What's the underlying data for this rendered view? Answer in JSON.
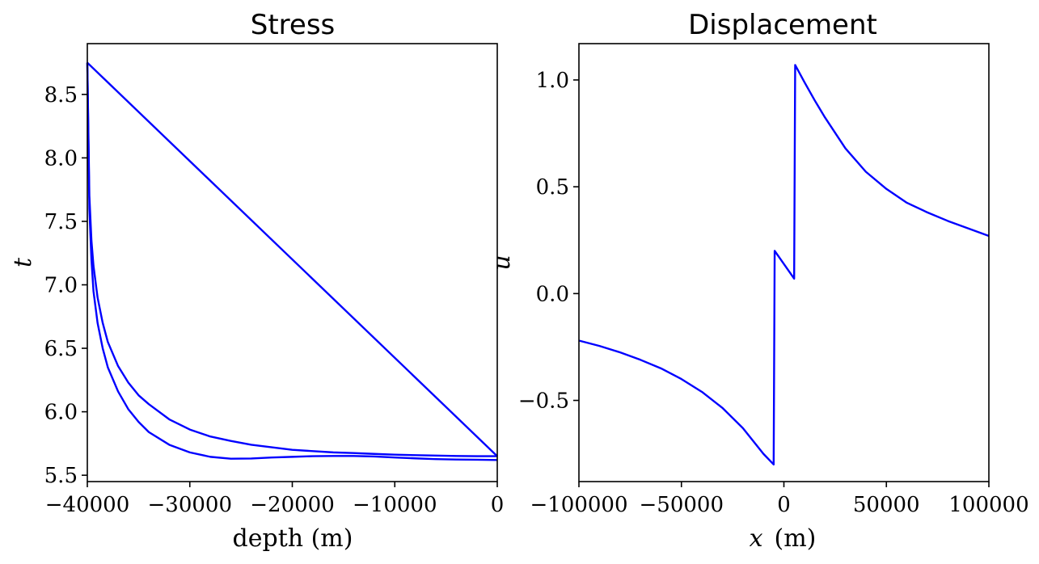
{
  "chart_data": [
    {
      "type": "line",
      "title": "Stress",
      "xlabel": "depth (m)",
      "ylabel": "t",
      "xlim": [
        -40000,
        0
      ],
      "ylim": [
        5.45,
        8.9
      ],
      "xticks": [
        -40000,
        -30000,
        -20000,
        -10000,
        0
      ],
      "xtick_labels": [
        "−40000",
        "−30000",
        "−20000",
        "−10000",
        "0"
      ],
      "yticks": [
        5.5,
        6.0,
        6.5,
        7.0,
        7.5,
        8.0,
        8.5
      ],
      "ytick_labels": [
        "5.5",
        "6.0",
        "6.5",
        "7.0",
        "7.5",
        "8.0",
        "8.5"
      ],
      "grid": false,
      "color": "#0000ff",
      "series": [
        {
          "x": [
            -40000,
            -39800,
            -39600,
            -39400,
            -39000,
            -38500,
            -38000,
            -37000,
            -36000,
            -35000,
            -34000,
            -32000,
            -30000,
            -28000,
            -26000,
            -24000,
            -22000,
            -20000,
            -18000,
            -16000,
            -14000,
            -12000,
            -10000,
            -8000,
            -6000,
            -4000,
            -2000,
            0
          ],
          "y": [
            8.75,
            7.6,
            7.2,
            6.95,
            6.7,
            6.5,
            6.35,
            6.16,
            6.02,
            5.92,
            5.84,
            5.74,
            5.68,
            5.645,
            5.63,
            5.632,
            5.64,
            5.645,
            5.65,
            5.652,
            5.652,
            5.648,
            5.64,
            5.633,
            5.627,
            5.624,
            5.622,
            5.62
          ]
        },
        {
          "x": [
            -40000,
            -39800,
            -39600,
            -39400,
            -39000,
            -38500,
            -38000,
            -37000,
            -36000,
            -35000,
            -34000,
            -32000,
            -30000,
            -28000,
            -26000,
            -24000,
            -22000,
            -20000,
            -18000,
            -16000,
            -14000,
            -12000,
            -10000,
            -8000,
            -6000,
            -4000,
            -2000,
            0
          ],
          "y": [
            8.75,
            7.7,
            7.35,
            7.15,
            6.9,
            6.7,
            6.55,
            6.36,
            6.23,
            6.13,
            6.06,
            5.94,
            5.86,
            5.805,
            5.77,
            5.74,
            5.72,
            5.7,
            5.69,
            5.68,
            5.675,
            5.668,
            5.662,
            5.658,
            5.655,
            5.652,
            5.65,
            5.65
          ]
        },
        {
          "x": [
            -40000,
            0
          ],
          "y": [
            8.75,
            5.65
          ]
        }
      ]
    },
    {
      "type": "line",
      "title": "Displacement",
      "xlabel": "x (m)",
      "xlabel_var": "x",
      "xlabel_unit": "(m)",
      "ylabel": "u",
      "xlim": [
        -100000,
        100000
      ],
      "ylim": [
        -0.88,
        1.17
      ],
      "xticks": [
        -100000,
        -50000,
        0,
        50000,
        100000
      ],
      "xtick_labels": [
        "−100000",
        "−50000",
        "0",
        "50000",
        "100000"
      ],
      "yticks": [
        -0.5,
        0.0,
        0.5,
        1.0
      ],
      "ytick_labels": [
        "−0.5",
        "0.0",
        "0.5",
        "1.0"
      ],
      "grid": false,
      "color": "#0000ff",
      "series": [
        {
          "x": [
            -100000,
            -90000,
            -80000,
            -70000,
            -60000,
            -50000,
            -40000,
            -30000,
            -20000,
            -15000,
            -10000,
            -5000,
            -4500,
            5000,
            5500,
            10000,
            15000,
            20000,
            30000,
            40000,
            50000,
            60000,
            70000,
            80000,
            90000,
            100000
          ],
          "y": [
            -0.22,
            -0.245,
            -0.275,
            -0.31,
            -0.35,
            -0.4,
            -0.46,
            -0.535,
            -0.63,
            -0.69,
            -0.75,
            -0.8,
            0.2,
            0.07,
            1.07,
            0.99,
            0.905,
            0.825,
            0.68,
            0.57,
            0.49,
            0.425,
            0.38,
            0.34,
            0.305,
            0.27
          ]
        }
      ]
    }
  ]
}
